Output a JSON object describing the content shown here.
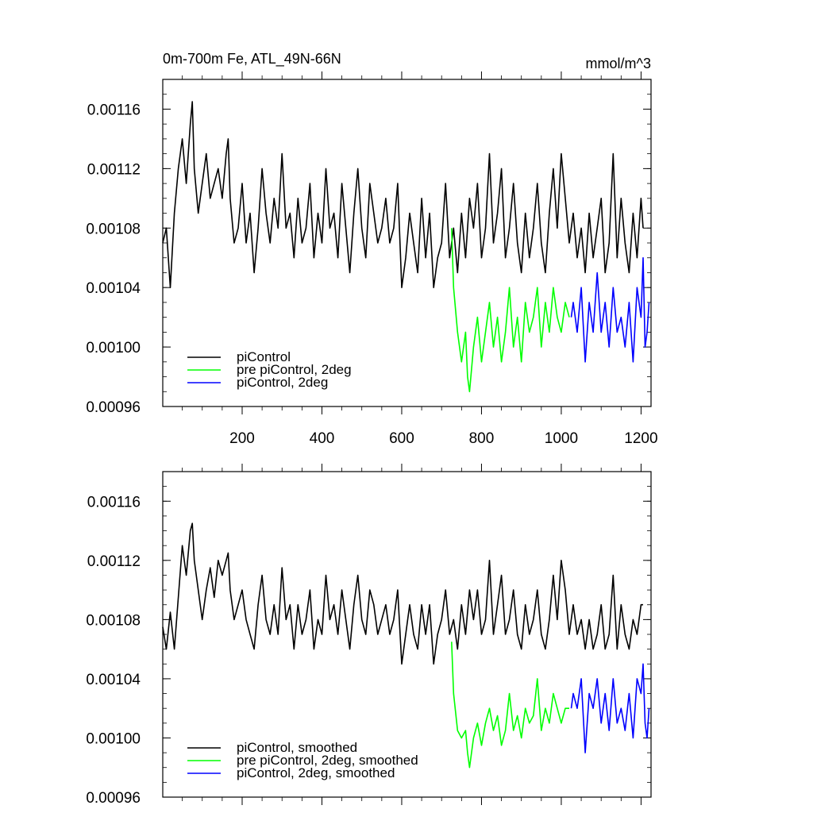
{
  "chart_data": [
    {
      "type": "line",
      "title": "0m-700m Fe, ATL_49N-66N",
      "units": "mmol/m^3",
      "xlim": [
        1,
        1225
      ],
      "ylim": [
        0.00096,
        0.00118
      ],
      "x_ticks": [
        200,
        400,
        600,
        800,
        1000,
        1200
      ],
      "x_tick_labels": [
        "200",
        "400",
        "600",
        "800",
        "1000",
        "1200"
      ],
      "y_ticks": [
        0.00096,
        0.001,
        0.00104,
        0.00108,
        0.00112,
        0.00116
      ],
      "y_tick_labels": [
        "0.00096",
        "0.00100",
        "0.00104",
        "0.00108",
        "0.00112",
        "0.00116"
      ],
      "grid": false,
      "legend_position": "bottom-left",
      "series": [
        {
          "name": "piControl",
          "color": "#000000",
          "x": [
            1,
            10,
            20,
            30,
            40,
            50,
            60,
            70,
            75,
            80,
            90,
            100,
            110,
            120,
            130,
            140,
            150,
            160,
            165,
            170,
            180,
            190,
            200,
            210,
            220,
            230,
            240,
            250,
            260,
            270,
            280,
            290,
            300,
            310,
            320,
            330,
            340,
            350,
            360,
            370,
            380,
            390,
            400,
            410,
            420,
            430,
            440,
            450,
            460,
            470,
            480,
            490,
            500,
            510,
            520,
            530,
            540,
            550,
            560,
            570,
            580,
            590,
            600,
            610,
            620,
            630,
            640,
            650,
            660,
            670,
            680,
            690,
            700,
            710,
            720,
            730,
            740,
            750,
            760,
            770,
            780,
            790,
            800,
            810,
            820,
            830,
            840,
            850,
            860,
            870,
            880,
            890,
            900,
            910,
            920,
            930,
            940,
            950,
            960,
            970,
            980,
            990,
            1000,
            1010,
            1020,
            1030,
            1040,
            1050,
            1060,
            1070,
            1080,
            1090,
            1100,
            1110,
            1120,
            1130,
            1140,
            1150,
            1160,
            1170,
            1180,
            1190,
            1200,
            1205
          ],
          "values": [
            0.00107,
            0.00108,
            0.00104,
            0.00109,
            0.00112,
            0.00114,
            0.00111,
            0.00115,
            0.001165,
            0.00112,
            0.00109,
            0.00111,
            0.00113,
            0.0011,
            0.00111,
            0.00112,
            0.0011,
            0.00113,
            0.00114,
            0.0011,
            0.00107,
            0.00108,
            0.00111,
            0.00107,
            0.00109,
            0.00105,
            0.00108,
            0.00112,
            0.00109,
            0.00107,
            0.0011,
            0.00108,
            0.00113,
            0.00108,
            0.00109,
            0.00106,
            0.0011,
            0.00107,
            0.00108,
            0.00111,
            0.00106,
            0.00109,
            0.00107,
            0.00112,
            0.00108,
            0.00109,
            0.00106,
            0.00111,
            0.00108,
            0.00105,
            0.00109,
            0.00112,
            0.00108,
            0.00106,
            0.00111,
            0.00109,
            0.00107,
            0.00108,
            0.0011,
            0.00107,
            0.00108,
            0.00111,
            0.00104,
            0.00106,
            0.00109,
            0.00107,
            0.00105,
            0.0011,
            0.00106,
            0.00109,
            0.00104,
            0.00106,
            0.00107,
            0.00111,
            0.00106,
            0.00108,
            0.00105,
            0.00109,
            0.00106,
            0.0011,
            0.00108,
            0.00111,
            0.00106,
            0.00108,
            0.00113,
            0.00107,
            0.00109,
            0.00112,
            0.00106,
            0.00108,
            0.00111,
            0.00107,
            0.00105,
            0.00109,
            0.00106,
            0.00108,
            0.00111,
            0.00107,
            0.00105,
            0.00109,
            0.00112,
            0.00108,
            0.00113,
            0.0011,
            0.00107,
            0.00109,
            0.00106,
            0.00108,
            0.00105,
            0.00109,
            0.00106,
            0.00108,
            0.0011,
            0.00105,
            0.00107,
            0.00113,
            0.00106,
            0.0011,
            0.00107,
            0.00105,
            0.00109,
            0.00106,
            0.0011,
            0.00108
          ]
        },
        {
          "name": "pre piControl, 2deg",
          "color": "#00ff00",
          "x": [
            725,
            730,
            740,
            750,
            760,
            765,
            770,
            780,
            790,
            800,
            810,
            820,
            830,
            840,
            850,
            860,
            870,
            880,
            890,
            900,
            910,
            920,
            930,
            940,
            950,
            960,
            970,
            980,
            990,
            1000,
            1010,
            1020
          ],
          "values": [
            0.00108,
            0.00104,
            0.00101,
            0.00099,
            0.00101,
            0.00098,
            0.00097,
            0.001,
            0.00102,
            0.00099,
            0.00101,
            0.00103,
            0.001,
            0.00102,
            0.00099,
            0.00101,
            0.00104,
            0.001,
            0.00102,
            0.00099,
            0.00103,
            0.00101,
            0.00102,
            0.00104,
            0.001,
            0.00103,
            0.00101,
            0.00104,
            0.00102,
            0.00101,
            0.00103,
            0.00102
          ]
        },
        {
          "name": "piControl, 2deg",
          "color": "#0000ff",
          "x": [
            1025,
            1030,
            1040,
            1050,
            1060,
            1070,
            1080,
            1090,
            1100,
            1110,
            1120,
            1130,
            1140,
            1150,
            1160,
            1170,
            1180,
            1190,
            1200,
            1205,
            1210,
            1215,
            1220
          ],
          "values": [
            0.00102,
            0.00103,
            0.00101,
            0.00104,
            0.00099,
            0.00103,
            0.00101,
            0.00105,
            0.00101,
            0.00103,
            0.001,
            0.00104,
            0.00101,
            0.00102,
            0.001,
            0.00103,
            0.00099,
            0.00104,
            0.00102,
            0.00106,
            0.001,
            0.00101,
            0.00103
          ]
        }
      ],
      "legend": [
        "piControl",
        "pre piControl, 2deg",
        "piControl, 2deg"
      ]
    },
    {
      "type": "line",
      "title": "",
      "xlim": [
        1,
        1225
      ],
      "ylim": [
        0.00096,
        0.00118
      ],
      "x_ticks": [
        200,
        400,
        600,
        800,
        1000,
        1200
      ],
      "y_ticks": [
        0.00096,
        0.001,
        0.00104,
        0.00108,
        0.00112,
        0.00116
      ],
      "y_tick_labels": [
        "0.00096",
        "0.00100",
        "0.00104",
        "0.00108",
        "0.00112",
        "0.00116"
      ],
      "grid": false,
      "legend_position": "bottom-left",
      "series": [
        {
          "name": "piControl, smoothed",
          "color": "#000000",
          "x": [
            1,
            10,
            20,
            30,
            40,
            50,
            60,
            70,
            75,
            80,
            90,
            100,
            110,
            120,
            130,
            140,
            150,
            160,
            165,
            170,
            180,
            190,
            200,
            210,
            220,
            230,
            240,
            250,
            260,
            270,
            280,
            290,
            300,
            310,
            320,
            330,
            340,
            350,
            360,
            370,
            380,
            390,
            400,
            410,
            420,
            430,
            440,
            450,
            460,
            470,
            480,
            490,
            500,
            510,
            520,
            530,
            540,
            550,
            560,
            570,
            580,
            590,
            600,
            610,
            620,
            630,
            640,
            650,
            660,
            670,
            680,
            690,
            700,
            710,
            720,
            730,
            740,
            750,
            760,
            770,
            780,
            790,
            800,
            810,
            820,
            830,
            840,
            850,
            860,
            870,
            880,
            890,
            900,
            910,
            920,
            930,
            940,
            950,
            960,
            970,
            980,
            990,
            1000,
            1010,
            1020,
            1030,
            1040,
            1050,
            1060,
            1070,
            1080,
            1090,
            1100,
            1110,
            1120,
            1130,
            1140,
            1150,
            1160,
            1170,
            1180,
            1190,
            1200,
            1205
          ],
          "values": [
            0.001075,
            0.00106,
            0.001085,
            0.00106,
            0.001095,
            0.00113,
            0.00111,
            0.00114,
            0.001145,
            0.00112,
            0.0011,
            0.00108,
            0.0011,
            0.001115,
            0.001095,
            0.00112,
            0.00111,
            0.00112,
            0.001125,
            0.0011,
            0.00108,
            0.00109,
            0.0011,
            0.00108,
            0.00107,
            0.00106,
            0.00109,
            0.00111,
            0.00108,
            0.00107,
            0.00109,
            0.00107,
            0.001115,
            0.00108,
            0.00109,
            0.00106,
            0.00109,
            0.00107,
            0.00108,
            0.0011,
            0.00106,
            0.00108,
            0.00107,
            0.00111,
            0.00108,
            0.00109,
            0.00107,
            0.0011,
            0.00108,
            0.00106,
            0.00109,
            0.00111,
            0.00108,
            0.00107,
            0.0011,
            0.00109,
            0.00107,
            0.00108,
            0.00109,
            0.00107,
            0.00108,
            0.0011,
            0.00105,
            0.00107,
            0.00109,
            0.00107,
            0.00106,
            0.00109,
            0.00107,
            0.00109,
            0.00105,
            0.00107,
            0.00108,
            0.0011,
            0.00107,
            0.00108,
            0.00106,
            0.00109,
            0.00107,
            0.0011,
            0.00108,
            0.0011,
            0.00107,
            0.00108,
            0.00112,
            0.00107,
            0.00109,
            0.00111,
            0.00107,
            0.00108,
            0.0011,
            0.00107,
            0.00106,
            0.00109,
            0.00107,
            0.00108,
            0.0011,
            0.00107,
            0.00106,
            0.00108,
            0.00111,
            0.00108,
            0.00112,
            0.0011,
            0.00107,
            0.00109,
            0.00107,
            0.00108,
            0.00106,
            0.00108,
            0.00106,
            0.00107,
            0.00109,
            0.00106,
            0.00107,
            0.00111,
            0.00106,
            0.00109,
            0.00107,
            0.00106,
            0.00108,
            0.00107,
            0.00109,
            0.00109
          ]
        },
        {
          "name": "pre piControl, 2deg, smoothed",
          "color": "#00ff00",
          "x": [
            725,
            730,
            740,
            750,
            760,
            765,
            770,
            780,
            790,
            800,
            810,
            820,
            830,
            840,
            850,
            860,
            870,
            880,
            890,
            900,
            910,
            920,
            930,
            940,
            950,
            960,
            970,
            980,
            990,
            1000,
            1010,
            1020
          ],
          "values": [
            0.001065,
            0.00103,
            0.001005,
            0.001,
            0.001005,
            0.00099,
            0.00098,
            0.001,
            0.00101,
            0.000995,
            0.00101,
            0.00102,
            0.001005,
            0.001015,
            0.000995,
            0.001005,
            0.00103,
            0.001005,
            0.001015,
            0.001,
            0.00102,
            0.00101,
            0.001015,
            0.00104,
            0.001005,
            0.00102,
            0.00101,
            0.00103,
            0.00102,
            0.00101,
            0.00102,
            0.00102
          ]
        },
        {
          "name": "piControl, 2deg, smoothed",
          "color": "#0000ff",
          "x": [
            1025,
            1030,
            1040,
            1050,
            1060,
            1070,
            1080,
            1090,
            1100,
            1110,
            1120,
            1130,
            1140,
            1150,
            1160,
            1170,
            1180,
            1190,
            1200,
            1205,
            1210,
            1215,
            1220
          ],
          "values": [
            0.00102,
            0.00103,
            0.00102,
            0.00104,
            0.00099,
            0.00103,
            0.00102,
            0.00104,
            0.00101,
            0.00103,
            0.001005,
            0.00104,
            0.00101,
            0.00102,
            0.001005,
            0.00103,
            0.001,
            0.00104,
            0.00103,
            0.00105,
            0.00101,
            0.001,
            0.00102
          ]
        }
      ],
      "legend": [
        "piControl, smoothed",
        "pre piControl, 2deg, smoothed",
        "piControl, 2deg, smoothed"
      ]
    }
  ]
}
